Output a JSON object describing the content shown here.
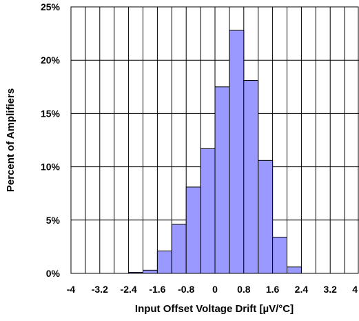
{
  "chart_data": {
    "type": "bar",
    "title": "",
    "xlabel": "Input Offset Voltage Drift [µV/°C]",
    "ylabel": "Percent of Amplifiers",
    "x_tick_labels": [
      "-4",
      "-3.2",
      "-2.4",
      "-1.6",
      "-0.8",
      "0",
      "0.8",
      "1.6",
      "2.4",
      "3.2",
      "4"
    ],
    "x_tick_values": [
      -4,
      -3.2,
      -2.4,
      -1.6,
      -0.8,
      0,
      0.8,
      1.6,
      2.4,
      3.2,
      4
    ],
    "y_tick_labels": [
      "0%",
      "5%",
      "10%",
      "15%",
      "20%",
      "25%"
    ],
    "y_tick_values": [
      0,
      5,
      10,
      15,
      20,
      25
    ],
    "xlim": [
      -4,
      4
    ],
    "ylim": [
      0,
      25
    ],
    "bin_width": 0.4,
    "bins": [
      {
        "x": -2.4,
        "value": 0.1
      },
      {
        "x": -2.0,
        "value": 0.3
      },
      {
        "x": -1.6,
        "value": 2.1
      },
      {
        "x": -1.2,
        "value": 4.6
      },
      {
        "x": -0.8,
        "value": 8.1
      },
      {
        "x": -0.4,
        "value": 11.7
      },
      {
        "x": 0.0,
        "value": 17.5
      },
      {
        "x": 0.4,
        "value": 22.8
      },
      {
        "x": 0.8,
        "value": 18.1
      },
      {
        "x": 1.2,
        "value": 10.6
      },
      {
        "x": 1.6,
        "value": 3.4
      },
      {
        "x": 2.0,
        "value": 0.6
      }
    ],
    "grid": true,
    "bar_color": "#9999ff",
    "bar_edge_color": "#000000"
  }
}
